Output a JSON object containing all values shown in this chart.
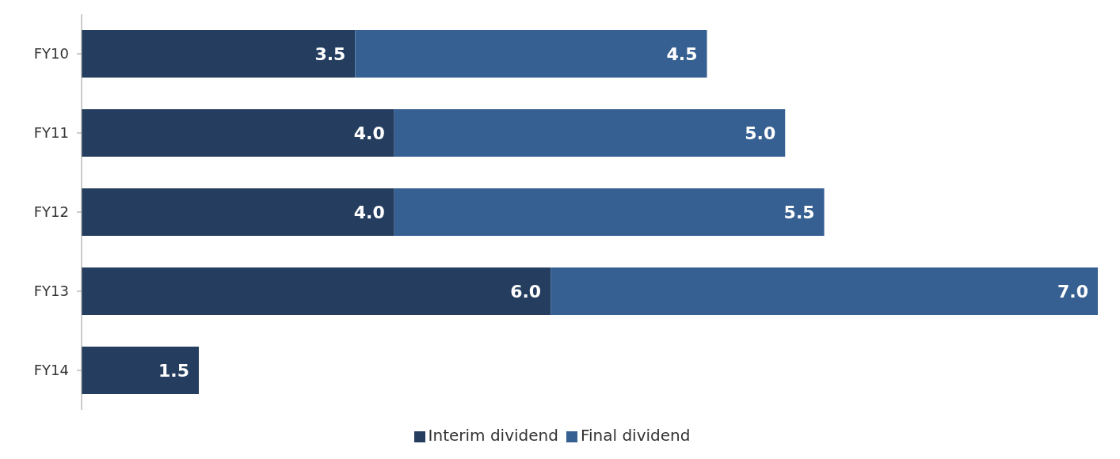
{
  "chart_data": {
    "type": "bar",
    "orientation": "horizontal",
    "stacked": true,
    "tick_labels": "y",
    "categories": [
      "FY10",
      "FY11",
      "FY12",
      "FY13",
      "FY14"
    ],
    "series": [
      {
        "name": "Interim dividend",
        "color": "#253e5f",
        "values": [
          3.5,
          4.0,
          4.0,
          6.0,
          1.5
        ],
        "value_labels": [
          "3.5",
          "4.0",
          "4.0",
          "6.0",
          "1.5"
        ]
      },
      {
        "name": "Final dividend",
        "color": "#366092",
        "values": [
          4.5,
          5.0,
          5.5,
          7.0,
          null
        ],
        "value_labels": [
          "4.5",
          "5.0",
          "5.5",
          "7.0",
          null
        ]
      }
    ],
    "legend": "bottom",
    "grid": false
  }
}
